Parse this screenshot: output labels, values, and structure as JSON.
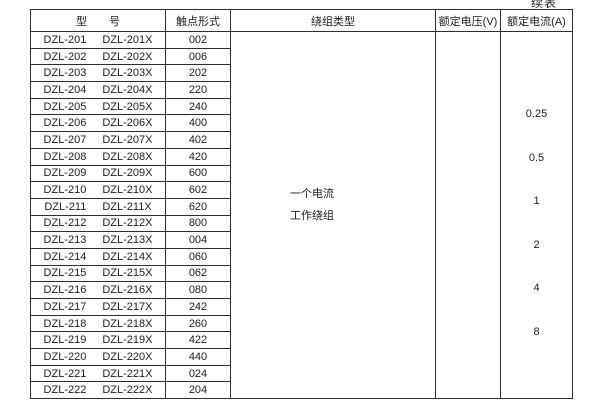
{
  "page": {
    "continued_label": "续表"
  },
  "table": {
    "headers": {
      "model_part1": "型",
      "model_part2": "号",
      "contact": "触点形式",
      "winding": "绕组类型",
      "voltage": "额定电压(V)",
      "current": "额定电流(A)"
    },
    "winding_type": {
      "line1": "一个电流",
      "line2": "工作绕组"
    },
    "current_values": [
      "0.25",
      "0.5",
      "1",
      "2",
      "4",
      "8"
    ],
    "rows": [
      {
        "model": "DZL-201",
        "model_x": "DZL-201X",
        "contact": "002"
      },
      {
        "model": "DZL-202",
        "model_x": "DZL-202X",
        "contact": "006"
      },
      {
        "model": "DZL-203",
        "model_x": "DZL-203X",
        "contact": "202"
      },
      {
        "model": "DZL-204",
        "model_x": "DZL-204X",
        "contact": "220"
      },
      {
        "model": "DZL-205",
        "model_x": "DZL-205X",
        "contact": "240"
      },
      {
        "model": "DZL-206",
        "model_x": "DZL-206X",
        "contact": "400"
      },
      {
        "model": "DZL-207",
        "model_x": "DZL-207X",
        "contact": "402"
      },
      {
        "model": "DZL-208",
        "model_x": "DZL-208X",
        "contact": "420"
      },
      {
        "model": "DZL-209",
        "model_x": "DZL-209X",
        "contact": "600"
      },
      {
        "model": "DZL-210",
        "model_x": "DZL-210X",
        "contact": "602"
      },
      {
        "model": "DZL-211",
        "model_x": "DZL-211X",
        "contact": "620"
      },
      {
        "model": "DZL-212",
        "model_x": "DZL-212X",
        "contact": "800"
      },
      {
        "model": "DZL-213",
        "model_x": "DZL-213X",
        "contact": "004"
      },
      {
        "model": "DZL-214",
        "model_x": "DZL-214X",
        "contact": "060"
      },
      {
        "model": "DZL-215",
        "model_x": "DZL-215X",
        "contact": "062"
      },
      {
        "model": "DZL-216",
        "model_x": "DZL-216X",
        "contact": "080"
      },
      {
        "model": "DZL-217",
        "model_x": "DZL-217X",
        "contact": "242"
      },
      {
        "model": "DZL-218",
        "model_x": "DZL-218X",
        "contact": "260"
      },
      {
        "model": "DZL-219",
        "model_x": "DZL-219X",
        "contact": "422"
      },
      {
        "model": "DZL-220",
        "model_x": "DZL-220X",
        "contact": "440"
      },
      {
        "model": "DZL-221",
        "model_x": "DZL-221X",
        "contact": "024"
      },
      {
        "model": "DZL-222",
        "model_x": "DZL-222X",
        "contact": "204"
      }
    ]
  },
  "colors": {
    "border": "#2e2e2e",
    "text": "#1c1c1c",
    "background": "#ffffff"
  }
}
